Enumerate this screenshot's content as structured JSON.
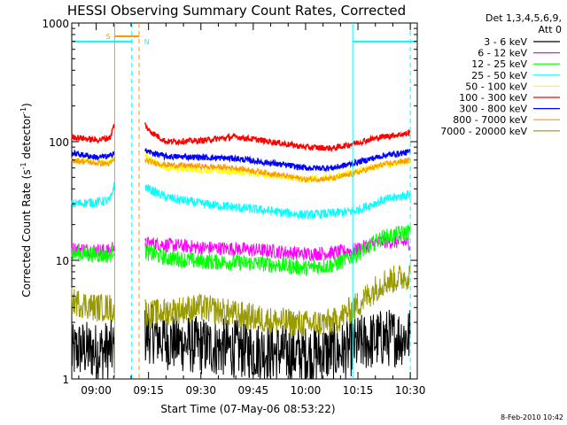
{
  "chart_data": {
    "type": "line",
    "title": "HESSI Observing Summary Count Rates, Corrected",
    "xlabel": "Start Time (07-May-06 08:53:22)",
    "ylabel": "Corrected Count Rate (s⁻¹ detector⁻¹)",
    "ylabel_main": "Corrected Count Rate (s",
    "ylabel_sup1": "-1",
    "ylabel_mid": " detector",
    "ylabel_sup2": "-1",
    "ylabel_end": ")",
    "y_scale": "log",
    "ylim": [
      1,
      1000
    ],
    "xlim_minutes": [
      -7,
      92
    ],
    "x_ticks": [
      {
        "t": 0,
        "label": "09:00"
      },
      {
        "t": 15,
        "label": "09:15"
      },
      {
        "t": 30,
        "label": "09:30"
      },
      {
        "t": 45,
        "label": "09:45"
      },
      {
        "t": 60,
        "label": "10:00"
      },
      {
        "t": 75,
        "label": "10:15"
      },
      {
        "t": 90,
        "label": "10:30"
      }
    ],
    "y_ticks": [
      {
        "v": 1,
        "label": "1"
      },
      {
        "v": 10,
        "label": "10"
      },
      {
        "v": 100,
        "label": "100"
      },
      {
        "v": 1000,
        "label": "1000"
      }
    ],
    "legend_header": [
      "Det 1,3,4,5,6,9,",
      "Att 0"
    ],
    "legend_placement": "right",
    "series": [
      {
        "name": "3 - 6 keV",
        "color": "#000000",
        "values": [
          [
            -7,
            1.6
          ],
          [
            -5,
            1.8
          ],
          [
            0,
            1.7
          ],
          [
            5,
            1.8
          ],
          [
            12,
            1.9
          ],
          [
            14,
            2.3
          ],
          [
            16,
            2.4
          ],
          [
            20,
            2.1
          ],
          [
            30,
            1.9
          ],
          [
            40,
            1.8
          ],
          [
            50,
            1.7
          ],
          [
            60,
            1.6
          ],
          [
            70,
            1.7
          ],
          [
            76,
            2.0
          ],
          [
            82,
            2.2
          ],
          [
            90,
            2.3
          ]
        ]
      },
      {
        "name": "6 - 12 keV",
        "color": "#ff00ff",
        "values": [
          [
            -7,
            12.5
          ],
          [
            0,
            12.2
          ],
          [
            4,
            12.0
          ],
          [
            5,
            13.5
          ],
          [
            14,
            13.5
          ],
          [
            15,
            14
          ],
          [
            20,
            13.5
          ],
          [
            30,
            12.8
          ],
          [
            40,
            12.5
          ],
          [
            50,
            12.0
          ],
          [
            60,
            11.3
          ],
          [
            68,
            11.6
          ],
          [
            74,
            12.2
          ],
          [
            82,
            14.5
          ],
          [
            90,
            14.0
          ]
        ]
      },
      {
        "name": "12 - 25 keV",
        "color": "#00ff00",
        "values": [
          [
            -7,
            11.5
          ],
          [
            0,
            11.2
          ],
          [
            4,
            11.0
          ],
          [
            5,
            12.5
          ],
          [
            14,
            12.0
          ],
          [
            15,
            11.5
          ],
          [
            20,
            10.5
          ],
          [
            30,
            9.8
          ],
          [
            40,
            9.6
          ],
          [
            50,
            9.3
          ],
          [
            60,
            8.6
          ],
          [
            68,
            9.2
          ],
          [
            74,
            11.0
          ],
          [
            82,
            15.5
          ],
          [
            90,
            17.5
          ]
        ]
      },
      {
        "name": "25 - 50 keV",
        "color": "#00ffff",
        "values": [
          [
            -7,
            30
          ],
          [
            0,
            31
          ],
          [
            4,
            32
          ],
          [
            5,
            42
          ],
          [
            14,
            42
          ],
          [
            15,
            40
          ],
          [
            20,
            34
          ],
          [
            30,
            30
          ],
          [
            40,
            28
          ],
          [
            50,
            26
          ],
          [
            60,
            24
          ],
          [
            68,
            25
          ],
          [
            74,
            26
          ],
          [
            82,
            32
          ],
          [
            90,
            36
          ]
        ]
      },
      {
        "name": "50 - 100 keV",
        "color": "#ffff00",
        "values": [
          [
            -7,
            70
          ],
          [
            0,
            68
          ],
          [
            4,
            66
          ],
          [
            5,
            78
          ],
          [
            14,
            78
          ],
          [
            15,
            72
          ],
          [
            20,
            60
          ],
          [
            30,
            58
          ],
          [
            40,
            56
          ],
          [
            50,
            52
          ],
          [
            60,
            48
          ],
          [
            68,
            50
          ],
          [
            74,
            56
          ],
          [
            82,
            63
          ],
          [
            90,
            68
          ]
        ]
      },
      {
        "name": "100 - 300 keV",
        "color": "#ff0000",
        "values": [
          [
            -7,
            110
          ],
          [
            0,
            103
          ],
          [
            4,
            108
          ],
          [
            5,
            135
          ],
          [
            14,
            140
          ],
          [
            15,
            125
          ],
          [
            20,
            100
          ],
          [
            30,
            102
          ],
          [
            40,
            110
          ],
          [
            50,
            100
          ],
          [
            60,
            90
          ],
          [
            68,
            88
          ],
          [
            74,
            97
          ],
          [
            82,
            110
          ],
          [
            90,
            118
          ]
        ]
      },
      {
        "name": "300 - 800 keV",
        "color": "#0000ff",
        "values": [
          [
            -7,
            80
          ],
          [
            0,
            74
          ],
          [
            4,
            75
          ],
          [
            5,
            82
          ],
          [
            14,
            84
          ],
          [
            15,
            82
          ],
          [
            20,
            75
          ],
          [
            30,
            74
          ],
          [
            40,
            72
          ],
          [
            50,
            66
          ],
          [
            60,
            60
          ],
          [
            68,
            60
          ],
          [
            74,
            66
          ],
          [
            82,
            76
          ],
          [
            90,
            82
          ]
        ]
      },
      {
        "name": "800 - 7000 keV",
        "color": "#ff9900",
        "values": [
          [
            -7,
            70
          ],
          [
            0,
            66
          ],
          [
            4,
            65
          ],
          [
            5,
            70
          ],
          [
            14,
            70
          ],
          [
            15,
            68
          ],
          [
            20,
            64
          ],
          [
            30,
            62
          ],
          [
            40,
            60
          ],
          [
            50,
            54
          ],
          [
            60,
            48
          ],
          [
            68,
            49
          ],
          [
            74,
            54
          ],
          [
            82,
            64
          ],
          [
            90,
            70
          ]
        ]
      },
      {
        "name": "7000 - 20000 keV",
        "color": "#999900",
        "values": [
          [
            -7,
            4.5
          ],
          [
            0,
            4.0
          ],
          [
            4,
            4.0
          ],
          [
            5,
            3.8
          ],
          [
            14,
            3.8
          ],
          [
            15,
            3.5
          ],
          [
            20,
            3.7
          ],
          [
            30,
            4.0
          ],
          [
            40,
            3.5
          ],
          [
            50,
            3.1
          ],
          [
            60,
            2.9
          ],
          [
            68,
            3.0
          ],
          [
            74,
            4.0
          ],
          [
            82,
            6.5
          ],
          [
            90,
            7.5
          ]
        ]
      }
    ],
    "markers": [
      {
        "kind": "saa_flag",
        "label": "S",
        "color": "#ff9900",
        "t_start": 5.3,
        "t_end": 12.3
      },
      {
        "kind": "night_flag",
        "label": "N",
        "color": "#00ffff",
        "t_start": 10.2,
        "t_end": 15
      },
      {
        "kind": "vline_solid",
        "color": "#ff9900",
        "t": 5.3
      },
      {
        "kind": "vline_dashed",
        "color": "#ff9900",
        "t": 12.3
      },
      {
        "kind": "vline_dashed",
        "color": "#00ffff",
        "t": 10.2
      },
      {
        "kind": "vline_dashed",
        "color": "#00ffff",
        "t": 90
      },
      {
        "kind": "vline_solid",
        "color": "#00ffff",
        "t": 73.5
      }
    ],
    "timestamp": "8-Feb-2010 10:42"
  }
}
